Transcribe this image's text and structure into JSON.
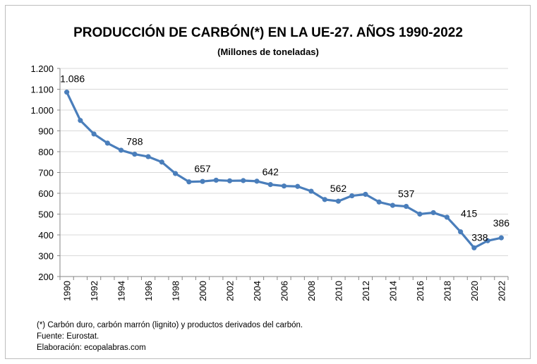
{
  "chart_data": {
    "type": "line",
    "title": "PRODUCCIÓN DE CARBÓN(*) EN LA UE-27. AÑOS 1990-2022",
    "subtitle": "(Millones de toneladas)",
    "xlabel": "",
    "ylabel": "",
    "ylim": [
      200,
      1200
    ],
    "yticks": [
      "200",
      "300",
      "400",
      "500",
      "600",
      "700",
      "800",
      "900",
      "1.000",
      "1.100",
      "1.200"
    ],
    "grid": true,
    "line_color": "#4a7ebb",
    "x": [
      1990,
      1991,
      1992,
      1993,
      1994,
      1995,
      1996,
      1997,
      1998,
      1999,
      2000,
      2001,
      2002,
      2003,
      2004,
      2005,
      2006,
      2007,
      2008,
      2009,
      2010,
      2011,
      2012,
      2013,
      2014,
      2015,
      2016,
      2017,
      2018,
      2019,
      2020,
      2021,
      2022
    ],
    "values": [
      1086,
      950,
      885,
      841,
      807,
      788,
      776,
      750,
      695,
      655,
      657,
      663,
      660,
      661,
      658,
      642,
      635,
      633,
      610,
      570,
      562,
      588,
      595,
      558,
      542,
      537,
      500,
      507,
      485,
      415,
      338,
      372,
      386
    ],
    "data_labels": [
      {
        "year": 1990,
        "text": "1.086"
      },
      {
        "year": 1995,
        "text": "788"
      },
      {
        "year": 2000,
        "text": "657"
      },
      {
        "year": 2005,
        "text": "642"
      },
      {
        "year": 2010,
        "text": "562"
      },
      {
        "year": 2015,
        "text": "537"
      },
      {
        "year": 2019,
        "text": "415"
      },
      {
        "year": 2020,
        "text": "338"
      },
      {
        "year": 2022,
        "text": "386"
      }
    ]
  },
  "notes": {
    "line1": "(*) Carbón duro, carbón marrón (lignito) y productos derivados del carbón.",
    "line2": "Fuente: Eurostat.",
    "line3": "Elaboración: ecopalabras.com"
  }
}
